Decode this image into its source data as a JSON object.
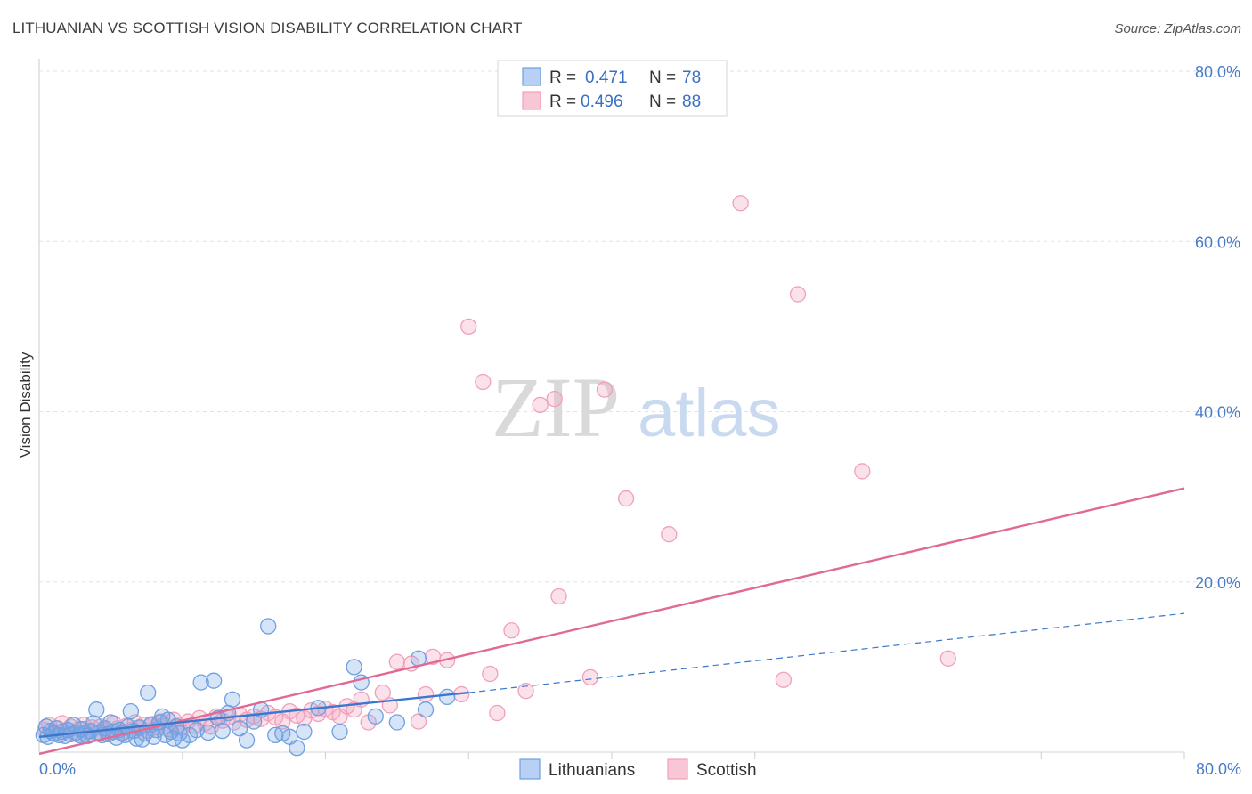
{
  "title": "LITHUANIAN VS SCOTTISH VISION DISABILITY CORRELATION CHART",
  "source": "Source: ZipAtlas.com",
  "watermark": {
    "zip": "ZIP",
    "atlas": "atlas"
  },
  "colors": {
    "lithuanian": "#6fa0e0",
    "lithuanian_line": "#3a78d0",
    "scottish": "#f0a0bc",
    "scottish_line": "#e06a94",
    "tick_label": "#4a7bc8",
    "grid": "#e2e2e2"
  },
  "legend": {
    "lithuanian": {
      "r_label": "R =",
      "r_value": "0.471",
      "n_label": "N =",
      "n_value": "78"
    },
    "scottish": {
      "r_label": "R =",
      "r_value": "0.496",
      "n_label": "N =",
      "n_value": "88"
    }
  },
  "bottom_legend": [
    "Lithuanians",
    "Scottish"
  ],
  "chart_data": {
    "type": "scatter",
    "title": "LITHUANIAN VS SCOTTISH VISION DISABILITY CORRELATION CHART",
    "xlabel": "",
    "ylabel": "Vision Disability",
    "xlim": [
      0,
      80
    ],
    "ylim": [
      0,
      80
    ],
    "x_tick_labels": [
      "0.0%",
      "80.0%"
    ],
    "y_ticks": [
      20,
      40,
      60,
      80
    ],
    "y_tick_labels": [
      "20.0%",
      "40.0%",
      "60.0%",
      "80.0%"
    ],
    "grid": true,
    "legend_position": "top-center",
    "series": [
      {
        "name": "Lithuanians",
        "r": 0.471,
        "n": 78,
        "trend_solid": {
          "x": [
            0,
            30
          ],
          "y": [
            1.8,
            7.0
          ]
        },
        "trend_dashed": {
          "x": [
            30,
            80
          ],
          "y": [
            7.0,
            16.3
          ]
        },
        "points": [
          [
            0.3,
            2.0
          ],
          [
            0.5,
            3.0
          ],
          [
            0.6,
            1.8
          ],
          [
            0.8,
            2.5
          ],
          [
            1.0,
            2.2
          ],
          [
            1.2,
            2.8
          ],
          [
            1.4,
            2.0
          ],
          [
            1.6,
            2.4
          ],
          [
            1.8,
            1.9
          ],
          [
            2.0,
            2.6
          ],
          [
            2.2,
            2.1
          ],
          [
            2.4,
            3.2
          ],
          [
            2.6,
            2.3
          ],
          [
            2.8,
            2.0
          ],
          [
            3.0,
            2.7
          ],
          [
            3.2,
            2.2
          ],
          [
            3.4,
            1.9
          ],
          [
            3.6,
            2.5
          ],
          [
            3.8,
            3.4
          ],
          [
            4.0,
            5.0
          ],
          [
            4.2,
            2.3
          ],
          [
            4.4,
            2.0
          ],
          [
            4.6,
            2.8
          ],
          [
            4.8,
            2.1
          ],
          [
            5.0,
            3.5
          ],
          [
            5.2,
            2.4
          ],
          [
            5.4,
            1.7
          ],
          [
            5.6,
            2.6
          ],
          [
            5.8,
            2.2
          ],
          [
            6.0,
            2.0
          ],
          [
            6.2,
            3.0
          ],
          [
            6.4,
            4.8
          ],
          [
            6.6,
            2.5
          ],
          [
            6.8,
            1.6
          ],
          [
            7.0,
            2.9
          ],
          [
            7.2,
            1.5
          ],
          [
            7.4,
            2.2
          ],
          [
            7.6,
            7.0
          ],
          [
            7.8,
            3.2
          ],
          [
            8.0,
            1.8
          ],
          [
            8.2,
            2.6
          ],
          [
            8.4,
            3.5
          ],
          [
            8.6,
            4.2
          ],
          [
            8.8,
            2.0
          ],
          [
            9.0,
            3.8
          ],
          [
            9.2,
            2.4
          ],
          [
            9.4,
            1.6
          ],
          [
            9.6,
            3.0
          ],
          [
            9.8,
            2.2
          ],
          [
            10.0,
            1.4
          ],
          [
            10.5,
            2.0
          ],
          [
            11.0,
            2.6
          ],
          [
            11.3,
            8.2
          ],
          [
            11.8,
            2.3
          ],
          [
            12.2,
            8.4
          ],
          [
            12.5,
            4.0
          ],
          [
            12.8,
            2.5
          ],
          [
            13.2,
            4.6
          ],
          [
            13.5,
            6.2
          ],
          [
            14.0,
            2.8
          ],
          [
            14.5,
            1.4
          ],
          [
            15.0,
            3.6
          ],
          [
            15.5,
            5.0
          ],
          [
            16.0,
            14.8
          ],
          [
            16.5,
            2.0
          ],
          [
            17.0,
            2.2
          ],
          [
            17.5,
            1.8
          ],
          [
            18.0,
            0.5
          ],
          [
            18.5,
            2.4
          ],
          [
            19.5,
            5.2
          ],
          [
            21.0,
            2.4
          ],
          [
            22.0,
            10.0
          ],
          [
            22.5,
            8.2
          ],
          [
            23.5,
            4.2
          ],
          [
            25.0,
            3.5
          ],
          [
            26.5,
            11.0
          ],
          [
            27.0,
            5.0
          ],
          [
            28.5,
            6.5
          ]
        ]
      },
      {
        "name": "Scottish",
        "r": 0.496,
        "n": 88,
        "trend": {
          "x": [
            0,
            80
          ],
          "y": [
            -0.2,
            31.0
          ]
        },
        "points": [
          [
            0.4,
            2.6
          ],
          [
            0.7,
            3.2
          ],
          [
            1.0,
            2.2
          ],
          [
            1.3,
            2.8
          ],
          [
            1.6,
            3.4
          ],
          [
            1.9,
            2.5
          ],
          [
            2.2,
            3.0
          ],
          [
            2.5,
            2.2
          ],
          [
            2.8,
            2.7
          ],
          [
            3.1,
            3.2
          ],
          [
            3.4,
            2.4
          ],
          [
            3.7,
            2.9
          ],
          [
            4.0,
            2.2
          ],
          [
            4.3,
            3.0
          ],
          [
            4.6,
            2.6
          ],
          [
            4.9,
            2.2
          ],
          [
            5.2,
            3.4
          ],
          [
            5.5,
            2.8
          ],
          [
            5.8,
            2.3
          ],
          [
            6.1,
            3.1
          ],
          [
            6.4,
            2.6
          ],
          [
            6.7,
            3.5
          ],
          [
            7.0,
            2.8
          ],
          [
            7.3,
            3.2
          ],
          [
            7.6,
            2.5
          ],
          [
            7.9,
            3.3
          ],
          [
            8.2,
            2.9
          ],
          [
            8.5,
            3.6
          ],
          [
            8.8,
            3.1
          ],
          [
            9.1,
            2.7
          ],
          [
            9.4,
            3.8
          ],
          [
            9.7,
            3.2
          ],
          [
            10.0,
            2.9
          ],
          [
            10.4,
            3.6
          ],
          [
            10.8,
            3.1
          ],
          [
            11.2,
            4.0
          ],
          [
            11.6,
            3.4
          ],
          [
            12.0,
            3.0
          ],
          [
            12.4,
            4.2
          ],
          [
            12.8,
            3.7
          ],
          [
            13.2,
            4.1
          ],
          [
            13.6,
            3.5
          ],
          [
            14.0,
            4.4
          ],
          [
            14.5,
            3.8
          ],
          [
            15.0,
            4.2
          ],
          [
            15.5,
            3.9
          ],
          [
            16.0,
            4.6
          ],
          [
            16.5,
            4.1
          ],
          [
            17.0,
            3.6
          ],
          [
            17.5,
            4.8
          ],
          [
            18.0,
            4.3
          ],
          [
            18.5,
            4.0
          ],
          [
            19.0,
            4.9
          ],
          [
            19.5,
            4.5
          ],
          [
            20.0,
            5.1
          ],
          [
            20.5,
            4.7
          ],
          [
            21.0,
            4.2
          ],
          [
            21.5,
            5.4
          ],
          [
            22.0,
            5.0
          ],
          [
            22.5,
            6.2
          ],
          [
            23.0,
            3.5
          ],
          [
            24.0,
            7.0
          ],
          [
            24.5,
            5.5
          ],
          [
            25.0,
            10.6
          ],
          [
            26.0,
            10.4
          ],
          [
            26.5,
            3.6
          ],
          [
            27.0,
            6.8
          ],
          [
            27.5,
            11.2
          ],
          [
            28.5,
            10.8
          ],
          [
            29.5,
            6.8
          ],
          [
            30.0,
            50.0
          ],
          [
            31.0,
            43.5
          ],
          [
            31.5,
            9.2
          ],
          [
            32.0,
            4.6
          ],
          [
            33.0,
            14.3
          ],
          [
            34.0,
            7.2
          ],
          [
            35.0,
            40.8
          ],
          [
            36.0,
            41.5
          ],
          [
            36.3,
            18.3
          ],
          [
            38.5,
            8.8
          ],
          [
            39.5,
            42.6
          ],
          [
            41.0,
            29.8
          ],
          [
            44.0,
            25.6
          ],
          [
            49.0,
            64.5
          ],
          [
            52.0,
            8.5
          ],
          [
            53.0,
            53.8
          ],
          [
            57.5,
            33.0
          ],
          [
            63.5,
            11.0
          ]
        ]
      }
    ]
  }
}
